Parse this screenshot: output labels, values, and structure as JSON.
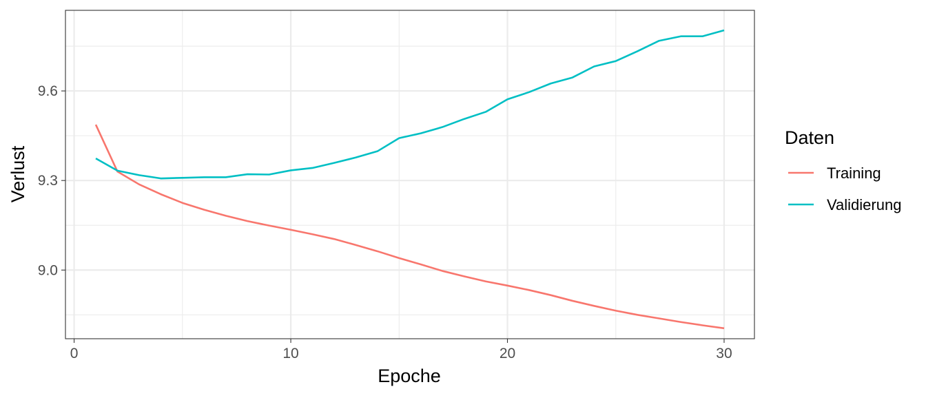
{
  "chart_data": {
    "type": "line",
    "xlabel": "Epoche",
    "ylabel": "Verlust",
    "legend_title": "Daten",
    "legend_position": "right",
    "grid": true,
    "theme": "bw",
    "xlim": [
      -0.4,
      31.4
    ],
    "ylim": [
      8.77,
      9.87
    ],
    "x_ticks": [
      0,
      10,
      20,
      30
    ],
    "x_minor_ticks": [
      5,
      15,
      25
    ],
    "y_ticks": [
      9.0,
      9.3,
      9.6
    ],
    "y_minor_ticks": [
      8.85,
      9.15,
      9.45,
      9.75
    ],
    "x_tick_labels": [
      "0",
      "10",
      "20",
      "30"
    ],
    "y_tick_labels": [
      "9.0",
      "9.3",
      "9.6"
    ],
    "series": [
      {
        "name": "Training",
        "color": "#F8766D",
        "x": [
          1,
          2,
          3,
          4,
          5,
          6,
          7,
          8,
          9,
          10,
          11,
          12,
          13,
          14,
          15,
          16,
          17,
          18,
          19,
          20,
          21,
          22,
          23,
          24,
          25,
          26,
          27,
          28,
          29,
          30
        ],
        "values": [
          9.487,
          9.33,
          9.287,
          9.254,
          9.225,
          9.202,
          9.182,
          9.164,
          9.149,
          9.135,
          9.12,
          9.104,
          9.084,
          9.063,
          9.04,
          9.019,
          8.997,
          8.979,
          8.962,
          8.948,
          8.933,
          8.916,
          8.897,
          8.88,
          8.864,
          8.85,
          8.838,
          8.826,
          8.815,
          8.805
        ]
      },
      {
        "name": "Validierung",
        "color": "#00BFC4",
        "x": [
          1,
          2,
          3,
          4,
          5,
          6,
          7,
          8,
          9,
          10,
          11,
          12,
          13,
          14,
          15,
          16,
          17,
          18,
          19,
          20,
          21,
          22,
          23,
          24,
          25,
          26,
          27,
          28,
          29,
          30
        ],
        "values": [
          9.374,
          9.333,
          9.318,
          9.307,
          9.309,
          9.311,
          9.311,
          9.321,
          9.32,
          9.334,
          9.342,
          9.359,
          9.377,
          9.398,
          9.442,
          9.458,
          9.479,
          9.506,
          9.53,
          9.572,
          9.596,
          9.625,
          9.645,
          9.682,
          9.7,
          9.733,
          9.768,
          9.783,
          9.783,
          9.803
        ]
      }
    ]
  }
}
